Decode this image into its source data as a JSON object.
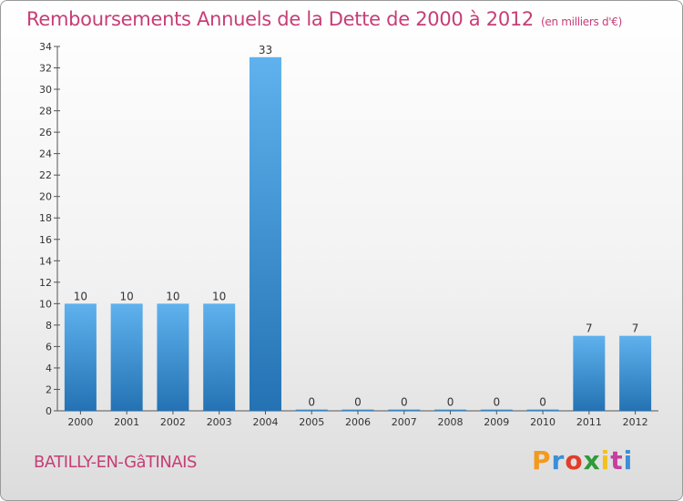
{
  "header": {
    "title": "Remboursements Annuels de la Dette de 2000 à 2012",
    "unit": "(en milliers d'€)"
  },
  "footer": {
    "commune": "BATILLY-EN-GâTINAIS",
    "logo": "Proxiti",
    "logo_colors": [
      "#f39a1e",
      "#3b8fd8",
      "#e23d2a",
      "#2f9a3a",
      "#f2c21b",
      "#c43fa0",
      "#3b8fd8"
    ]
  },
  "colors": {
    "title": "#c73d76",
    "bar_light": "#5fb2ee",
    "bar_dark": "#2472b3"
  },
  "chart_data": {
    "type": "bar",
    "title": "Remboursements Annuels de la Dette de 2000 à 2012",
    "subtitle": "(en milliers d'€)",
    "xlabel": "",
    "ylabel": "",
    "categories": [
      "2000",
      "2001",
      "2002",
      "2003",
      "2004",
      "2005",
      "2006",
      "2007",
      "2008",
      "2009",
      "2010",
      "2011",
      "2012"
    ],
    "values": [
      10,
      10,
      10,
      10,
      33,
      0,
      0,
      0,
      0,
      0,
      0,
      7,
      7
    ],
    "ylim": [
      0,
      34
    ],
    "yticks": [
      0,
      2,
      4,
      6,
      8,
      10,
      12,
      14,
      16,
      18,
      20,
      22,
      24,
      26,
      28,
      30,
      32,
      34
    ],
    "grid": false,
    "legend": "none"
  }
}
